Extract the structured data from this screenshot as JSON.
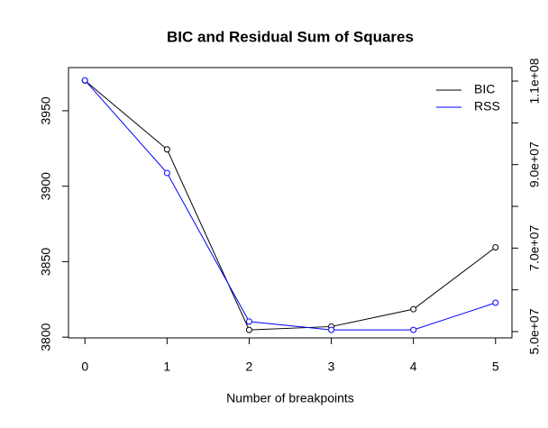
{
  "chart_data": {
    "type": "line",
    "title": "BIC and Residual Sum of Squares",
    "x_label": "Number of breakpoints",
    "x": [
      0,
      1,
      2,
      3,
      4,
      5
    ],
    "xlim": [
      -0.2,
      5.2
    ],
    "xticks": [
      0,
      1,
      2,
      3,
      4,
      5
    ],
    "ylim": [
      3799.5,
      3978.6
    ],
    "yticks": [
      3800,
      3850,
      3900,
      3950
    ],
    "y2lim": [
      48490000,
      113240000
    ],
    "y2ticks": [
      {
        "value": 50000000,
        "label": "5.0e+07"
      },
      60000000,
      {
        "value": 70000000,
        "label": "7.0e+07"
      },
      80000000,
      {
        "value": 90000000,
        "label": "9.0e+07"
      },
      100000000,
      {
        "value": 110000000,
        "label": "1.1e+08"
      }
    ],
    "legend": "top-right",
    "series": [
      {
        "name": "BIC",
        "color": "#000000",
        "values": [
          3970,
          3924.4,
          3804.8,
          3807,
          3818.5,
          3859.5
        ]
      },
      {
        "name": "RSS",
        "color": "#0000ff",
        "axis": "y2",
        "values": [
          110200000,
          88000000,
          52400000,
          50400000,
          50400000,
          56900000
        ]
      }
    ]
  }
}
